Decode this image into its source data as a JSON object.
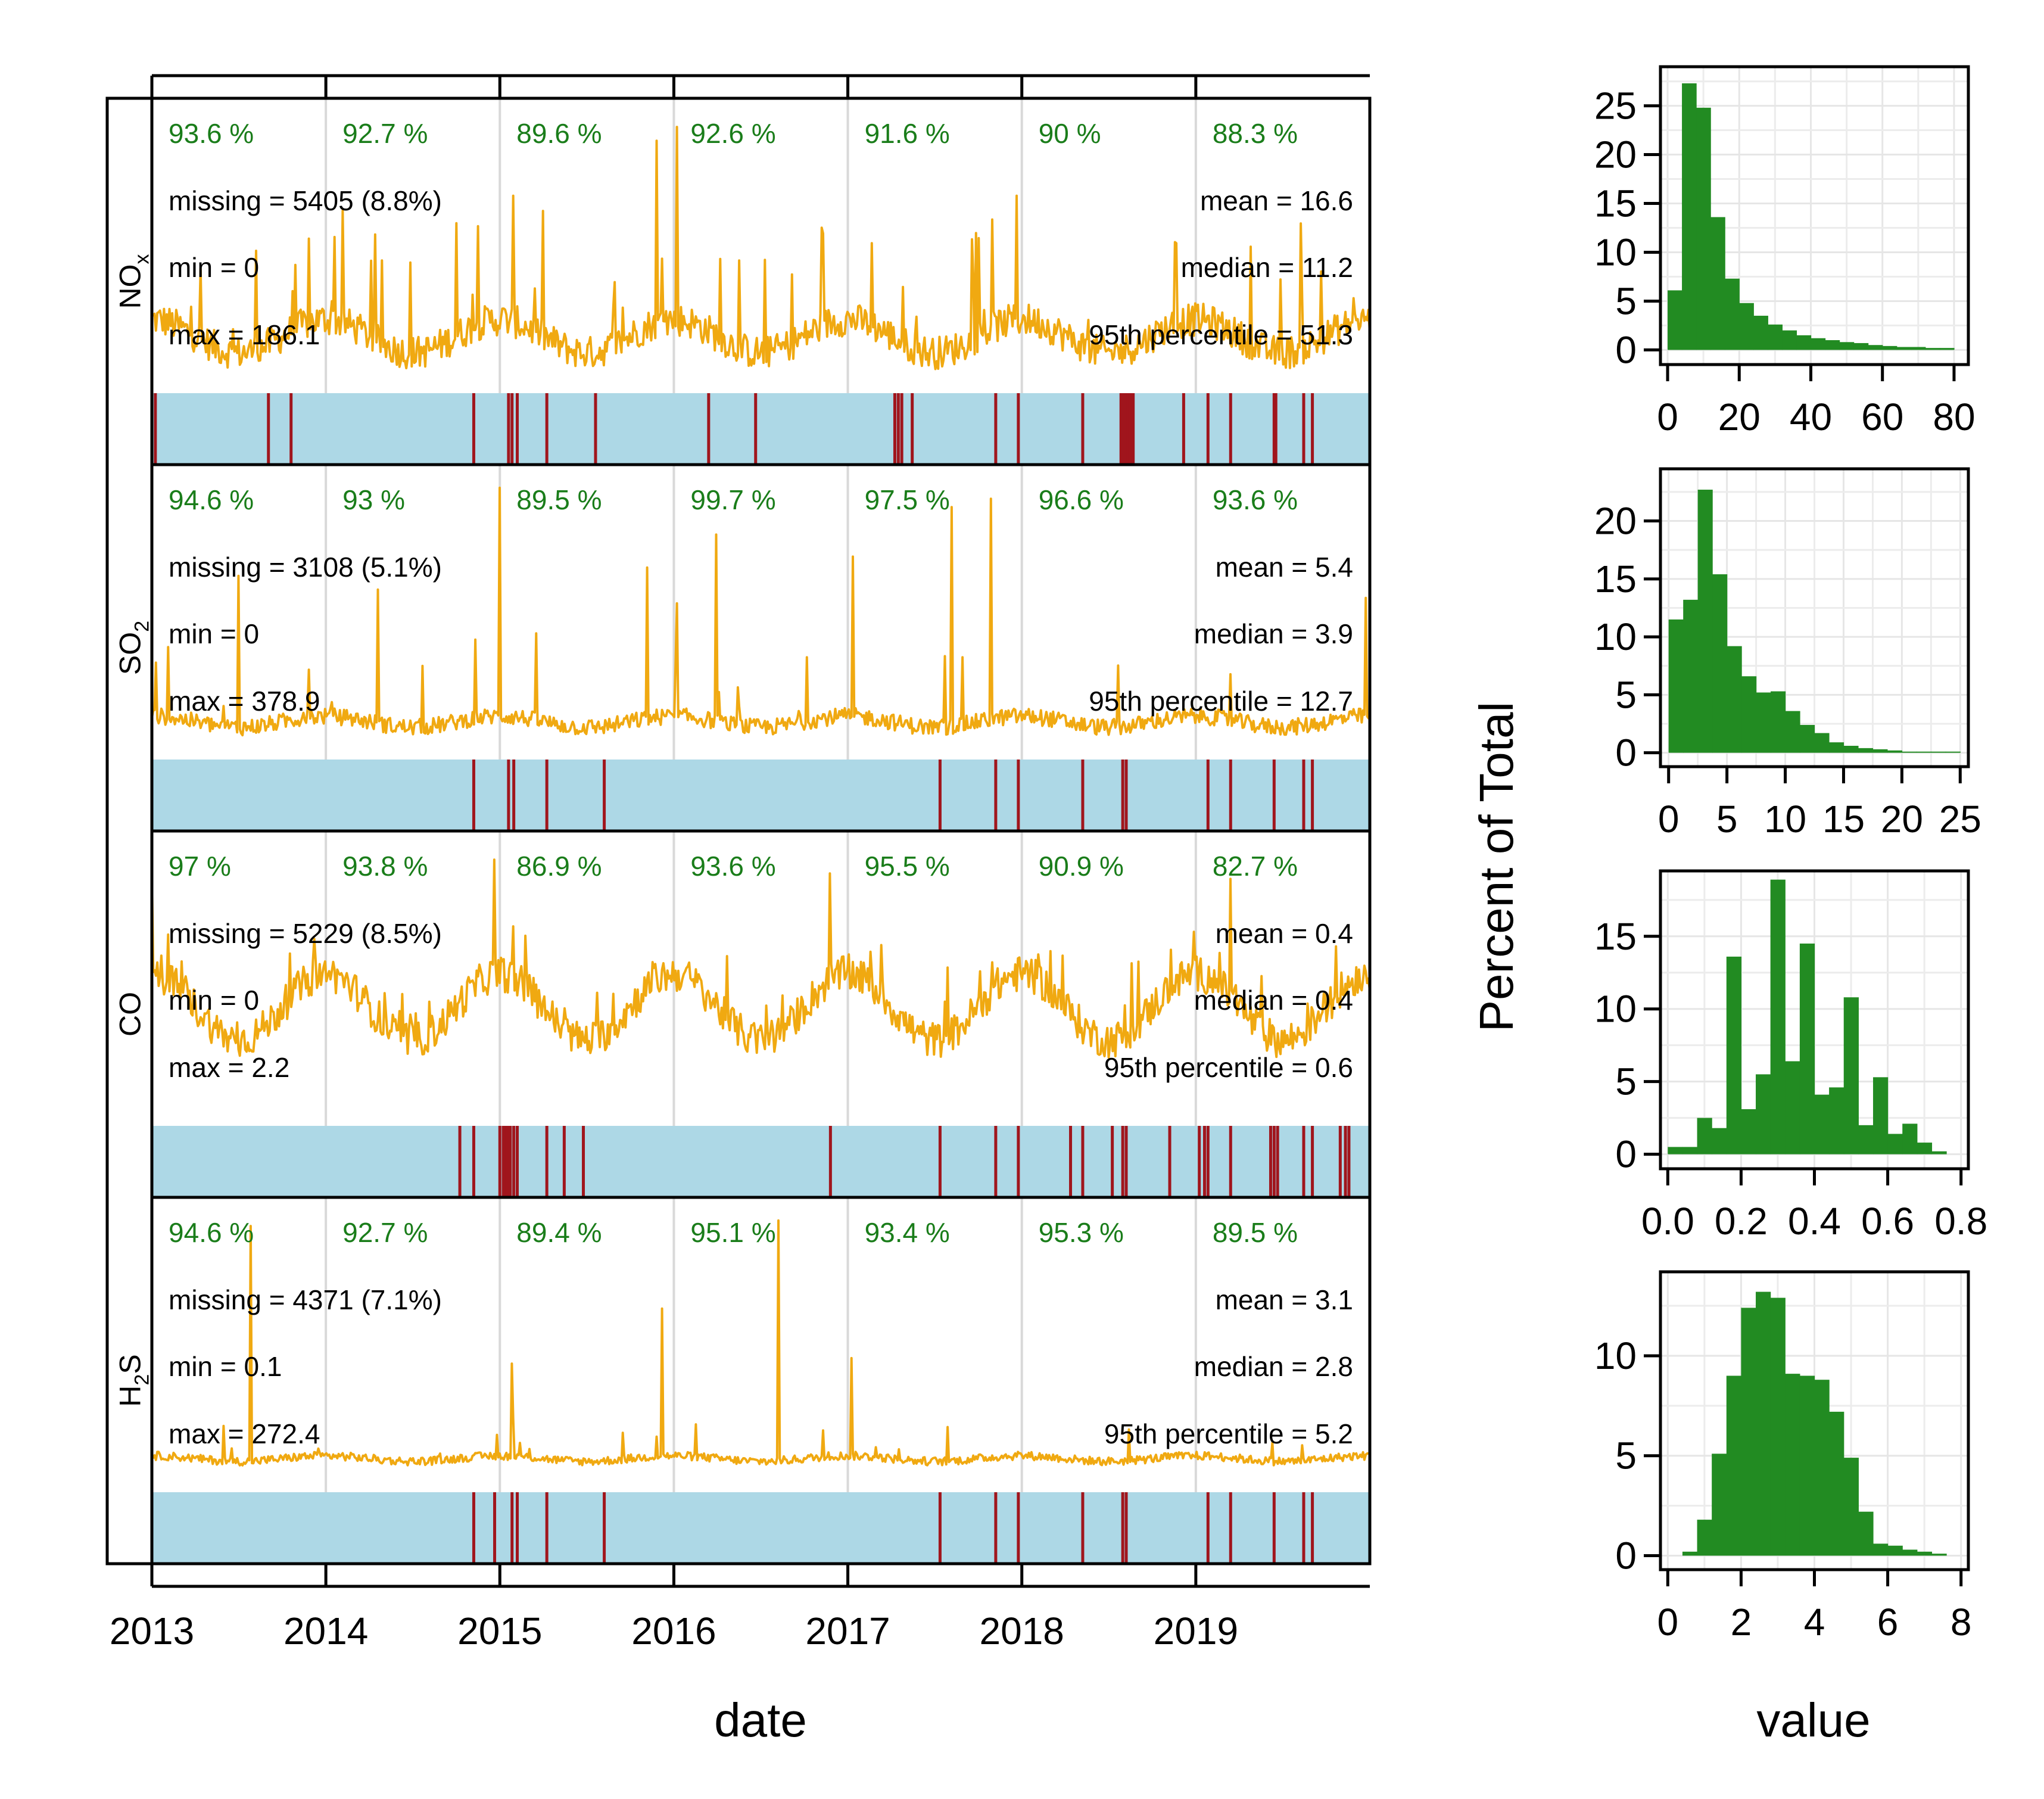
{
  "figure": {
    "xlabel_left": "date",
    "xlabel_right": "value",
    "ylabel_right": "Percent of Total"
  },
  "colors": {
    "series_line": "#f0a911",
    "histogram_fill": "#228b22",
    "missing_bar_background": "#add8e6",
    "missing_marker": "#a0151c",
    "annual_percent_text": "#1a7d1a",
    "grid": "#d9d9d9"
  },
  "chart_data": [
    {
      "type": "line",
      "x_axis": {
        "tick_labels": [
          "2013",
          "2014",
          "2015",
          "2016",
          "2017",
          "2018",
          "2019"
        ],
        "range": [
          "2013-01-01",
          "2019-12-31"
        ]
      },
      "panels": [
        {
          "pollutant": "NOx",
          "label_main": "NO",
          "label_sub": "x",
          "annual_percent": [
            "93.6 %",
            "92.7 %",
            "89.6 %",
            "92.6 %",
            "91.6 %",
            "90 %",
            "88.3 %"
          ],
          "missing_text": "missing = 5405 (8.8%)",
          "min_text": "min = 0",
          "max_text": "max = 186.1",
          "mean_text": "mean = 16.6",
          "median_text": "median = 11.2",
          "p95_text": "95th percentile = 51.3",
          "missing_periods": [
            2013.02,
            2013.67,
            2013.8,
            2014.85,
            2015.05,
            2015.07,
            2015.1,
            2015.27,
            2015.55,
            2016.2,
            2016.47,
            2017.27,
            2017.29,
            2017.31,
            2017.37,
            2017.85,
            2017.98,
            2018.35,
            2018.57,
            2018.58,
            2018.59,
            2018.6,
            2018.61,
            2018.62,
            2018.63,
            2018.64,
            2018.93,
            2019.07,
            2019.2,
            2019.45,
            2019.46,
            2019.62,
            2019.67
          ]
        },
        {
          "pollutant": "SO2",
          "label_main": "SO",
          "label_sub": "2",
          "annual_percent": [
            "94.6 %",
            "93 %",
            "89.5 %",
            "99.7 %",
            "97.5 %",
            "96.6 %",
            "93.6 %"
          ],
          "missing_text": "missing = 3108 (5.1%)",
          "min_text": "min = 0",
          "max_text": "max = 378.9",
          "mean_text": "mean = 5.4",
          "median_text": "median = 3.9",
          "p95_text": "95th percentile = 12.7",
          "missing_periods": [
            2014.85,
            2015.05,
            2015.08,
            2015.27,
            2015.6,
            2017.53,
            2017.85,
            2017.98,
            2018.35,
            2018.58,
            2018.6,
            2019.07,
            2019.2,
            2019.45,
            2019.62,
            2019.67
          ]
        },
        {
          "pollutant": "CO",
          "label_main": "CO",
          "label_sub": "",
          "annual_percent": [
            "97 %",
            "93.8 %",
            "86.9 %",
            "93.6 %",
            "95.5 %",
            "90.9 %",
            "82.7 %"
          ],
          "missing_text": "missing = 5229 (8.5%)",
          "min_text": "min = 0",
          "max_text": "max = 2.2",
          "mean_text": "mean = 0.4",
          "median_text": "median = 0.4",
          "p95_text": "95th percentile = 0.6",
          "missing_periods": [
            2014.77,
            2014.85,
            2015.0,
            2015.02,
            2015.03,
            2015.04,
            2015.05,
            2015.06,
            2015.08,
            2015.1,
            2015.27,
            2015.37,
            2015.48,
            2016.9,
            2017.53,
            2017.85,
            2017.98,
            2018.28,
            2018.35,
            2018.52,
            2018.58,
            2018.6,
            2018.85,
            2019.02,
            2019.05,
            2019.07,
            2019.2,
            2019.43,
            2019.45,
            2019.47,
            2019.62,
            2019.67,
            2019.83,
            2019.86,
            2019.88
          ]
        },
        {
          "pollutant": "H2S",
          "label_main": "H",
          "label_sub": "2",
          "label_after": "S",
          "annual_percent": [
            "94.6 %",
            "92.7 %",
            "89.4 %",
            "95.1 %",
            "93.4 %",
            "95.3 %",
            "89.5 %"
          ],
          "missing_text": "missing = 4371 (7.1%)",
          "min_text": "min = 0.1",
          "max_text": "max = 272.4",
          "mean_text": "mean = 3.1",
          "median_text": "median = 2.8",
          "p95_text": "95th percentile = 5.2",
          "missing_periods": [
            2014.85,
            2014.97,
            2015.07,
            2015.1,
            2015.27,
            2015.6,
            2017.53,
            2017.85,
            2017.98,
            2018.35,
            2018.58,
            2018.6,
            2019.07,
            2019.2,
            2019.45,
            2019.62,
            2019.67
          ]
        }
      ]
    },
    {
      "type": "bar",
      "pollutant": "NOx",
      "ylabel": "Percent of Total",
      "bin_edges": [
        0,
        4,
        8,
        12,
        16,
        20,
        24,
        28,
        32,
        36,
        40,
        44,
        48,
        52,
        56,
        60,
        64,
        68,
        72,
        76,
        80
      ],
      "values": [
        6.1,
        27.3,
        24.8,
        13.6,
        7.3,
        4.8,
        3.5,
        2.6,
        2.0,
        1.5,
        1.2,
        1.0,
        0.8,
        0.7,
        0.5,
        0.4,
        0.3,
        0.3,
        0.2,
        0.2
      ],
      "xlim": [
        -2,
        84
      ],
      "ylim": [
        -1.5,
        29
      ],
      "x_ticks": [
        0,
        20,
        40,
        60,
        80
      ],
      "y_ticks": [
        0,
        5,
        10,
        15,
        20,
        25
      ]
    },
    {
      "type": "bar",
      "pollutant": "SO2",
      "ylabel": "Percent of Total",
      "bin_edges": [
        0,
        1.25,
        2.5,
        3.75,
        5,
        6.25,
        7.5,
        8.75,
        10,
        11.25,
        12.5,
        13.75,
        15,
        16.25,
        17.5,
        18.75,
        20,
        21.25,
        22.5,
        23.75,
        25
      ],
      "values": [
        11.5,
        13.2,
        22.7,
        15.4,
        9.2,
        6.6,
        5.2,
        5.3,
        3.6,
        2.4,
        1.7,
        0.9,
        0.6,
        0.4,
        0.3,
        0.2,
        0.1,
        0.1,
        0.1,
        0.1
      ],
      "xlim": [
        -0.7,
        25.7
      ],
      "ylim": [
        -1.2,
        24.5
      ],
      "x_ticks": [
        0,
        5,
        10,
        15,
        20,
        25
      ],
      "y_ticks": [
        0,
        5,
        10,
        15,
        20
      ]
    },
    {
      "type": "bar",
      "pollutant": "CO",
      "ylabel": "Percent of Total",
      "bin_edges": [
        0,
        0.04,
        0.08,
        0.12,
        0.16,
        0.2,
        0.24,
        0.28,
        0.32,
        0.36,
        0.4,
        0.44,
        0.48,
        0.52,
        0.56,
        0.6,
        0.64,
        0.68,
        0.72,
        0.76,
        0.8
      ],
      "values": [
        0.5,
        0.5,
        2.5,
        1.8,
        13.6,
        3.1,
        5.5,
        18.9,
        6.4,
        14.5,
        4.1,
        4.6,
        10.8,
        2.0,
        5.3,
        1.4,
        2.1,
        0.8,
        0.2,
        0
      ],
      "xlim": [
        -0.02,
        0.82
      ],
      "ylim": [
        -1,
        19.5
      ],
      "x_ticks": [
        0.0,
        0.2,
        0.4,
        0.6,
        0.8
      ],
      "x_tick_labels": [
        "0.0",
        "0.2",
        "0.4",
        "0.6",
        "0.8"
      ],
      "y_ticks": [
        0,
        5,
        10,
        15
      ]
    },
    {
      "type": "bar",
      "pollutant": "H2S",
      "ylabel": "Percent of Total",
      "bin_edges": [
        0,
        0.4,
        0.8,
        1.2,
        1.6,
        2.0,
        2.4,
        2.8,
        3.2,
        3.6,
        4.0,
        4.4,
        4.8,
        5.2,
        5.6,
        6.0,
        6.4,
        6.8,
        7.2,
        7.6,
        8.0
      ],
      "values": [
        0,
        0.2,
        1.8,
        5.1,
        9.0,
        12.4,
        13.2,
        12.9,
        9.1,
        9.0,
        8.8,
        7.2,
        4.9,
        2.2,
        0.6,
        0.5,
        0.3,
        0.2,
        0.1,
        0
      ],
      "xlim": [
        -0.2,
        8.2
      ],
      "ylim": [
        -0.7,
        14.2
      ],
      "x_ticks": [
        0,
        2,
        4,
        6,
        8
      ],
      "y_ticks": [
        0,
        5,
        10
      ]
    }
  ]
}
